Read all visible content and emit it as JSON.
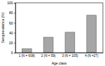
{
  "chart_data": {
    "type": "bar",
    "xlabel": "Age class",
    "ylabel": "Seroprevalence (%)",
    "categories": [
      "1 (N = 608)",
      "2 (N = 59)",
      "3 (N = 105)",
      "4 (N =27)"
    ],
    "values": [
      8,
      31,
      41,
      75
    ],
    "color": "#a6a6a6",
    "ylim": [
      0,
      100
    ],
    "yticks": [
      0,
      20,
      40,
      60,
      80,
      100
    ],
    "grid": false
  }
}
